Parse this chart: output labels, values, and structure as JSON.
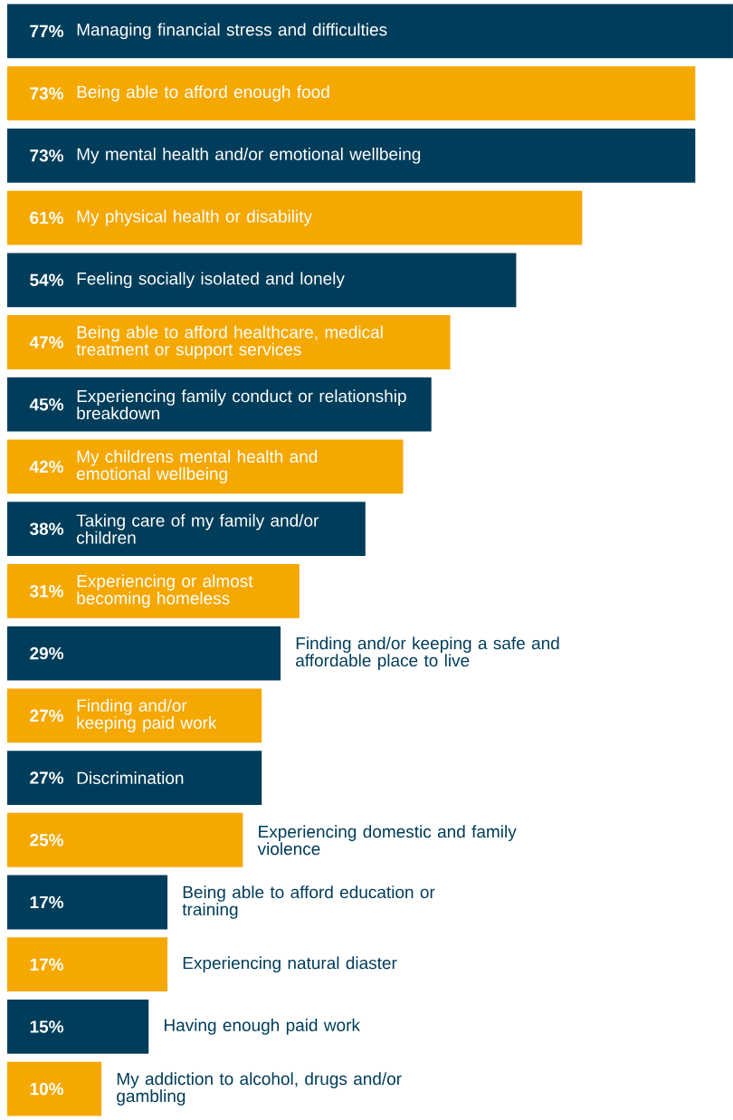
{
  "chart_data": {
    "type": "bar",
    "orientation": "horizontal",
    "categories": [
      "Managing financial stress and difficulties",
      "Being able to afford enough food",
      "My mental health and/or emotional wellbeing",
      "My physical health or disability",
      "Feeling socially isolated and lonely",
      "Being able to afford healthcare, medical treatment or support services",
      "Experiencing family conduct or relationship breakdown",
      "My childrens mental health and emotional wellbeing",
      "Taking care of my family and/or children",
      "Experiencing or almost becoming homeless",
      "Finding and/or keeping a safe and affordable place to live",
      "Finding and/or keeping paid work",
      "Discrimination",
      "Experiencing domestic and family violence",
      "Being able to afford education or training",
      "Experiencing natural diaster",
      "Having enough paid work",
      "My addiction to alcohol, drugs and/or gambling"
    ],
    "values": [
      77,
      73,
      73,
      61,
      54,
      47,
      45,
      42,
      38,
      31,
      29,
      27,
      27,
      25,
      17,
      17,
      15,
      10
    ],
    "value_labels": [
      "77%",
      "73%",
      "73%",
      "61%",
      "54%",
      "47%",
      "45%",
      "42%",
      "38%",
      "31%",
      "29%",
      "27%",
      "27%",
      "25%",
      "17%",
      "17%",
      "15%",
      "10%"
    ],
    "colors": [
      "#003d5a",
      "#f5a800",
      "#003d5a",
      "#f5a800",
      "#003d5a",
      "#f5a800",
      "#003d5a",
      "#f5a800",
      "#003d5a",
      "#f5a800",
      "#003d5a",
      "#f5a800",
      "#003d5a",
      "#f5a800",
      "#003d5a",
      "#f5a800",
      "#003d5a",
      "#f5a800"
    ],
    "xlim": [
      0,
      77
    ]
  }
}
